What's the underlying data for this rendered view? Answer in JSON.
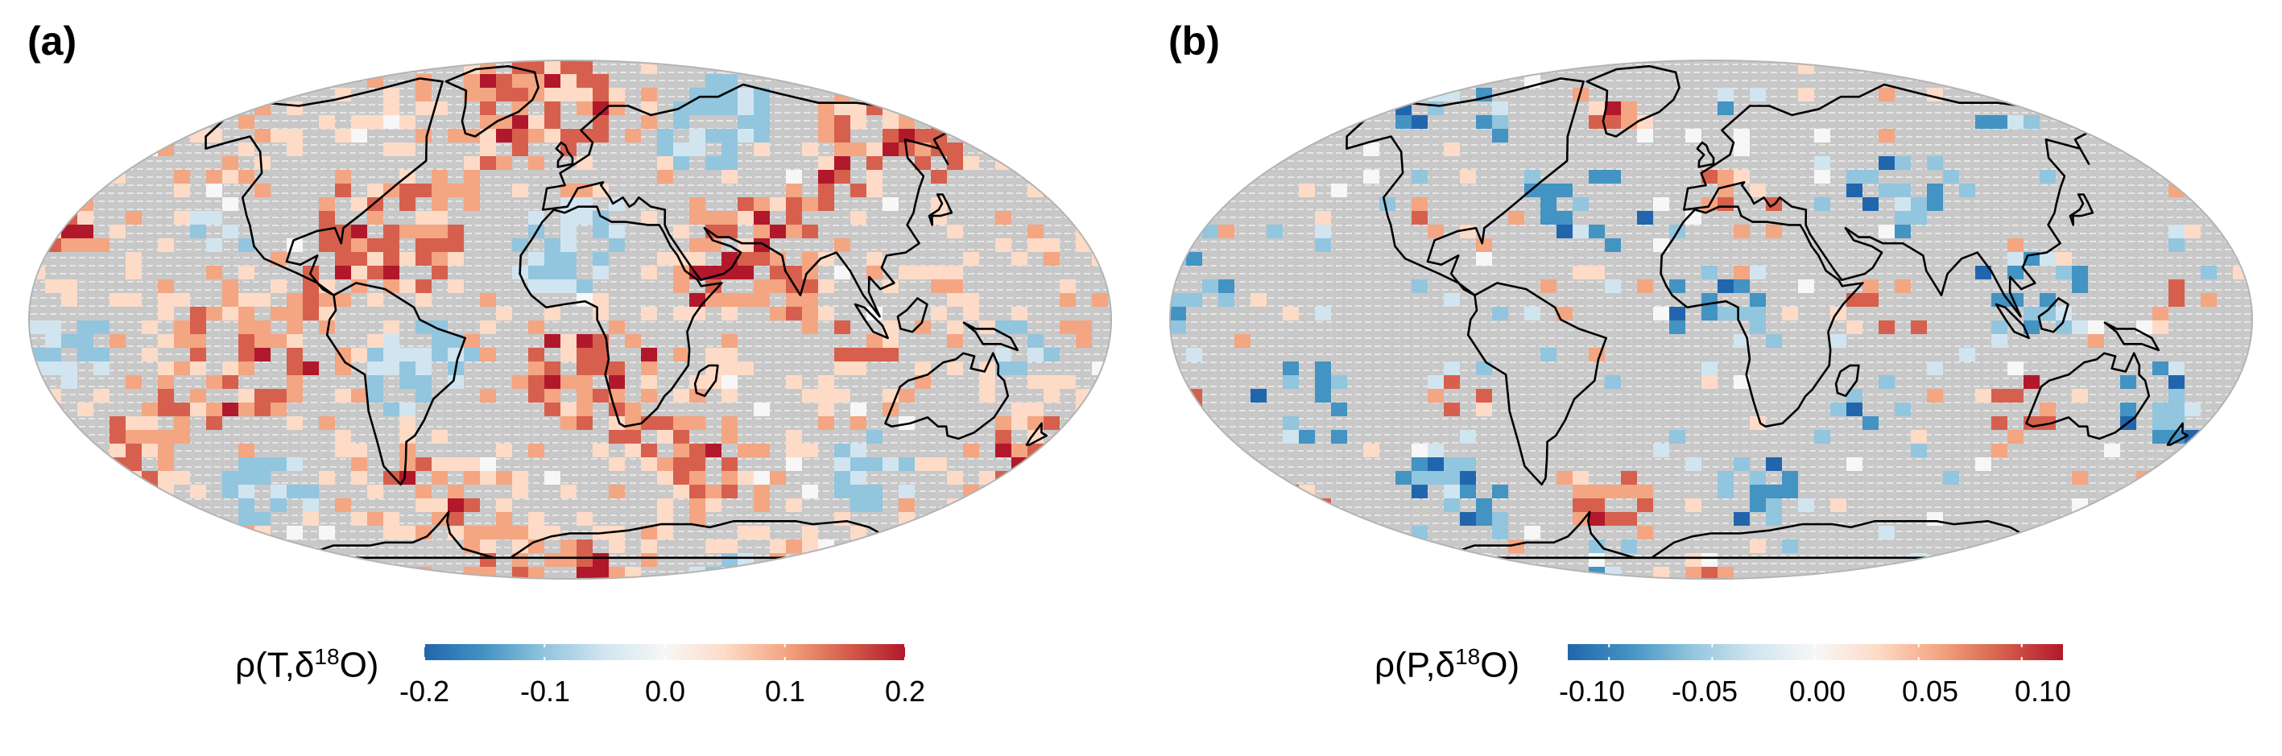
{
  "panels": [
    {
      "label": "(a)",
      "colorbar": {
        "title_prefix": "ρ(T,δ",
        "title_sup": "18",
        "title_suffix": "O)",
        "min": -0.2,
        "max": 0.2,
        "ticks": [
          -0.2,
          -0.1,
          0.0,
          0.1,
          0.2
        ],
        "tick_labels": [
          "-0.2",
          "-0.1",
          "0.0",
          "0.1",
          "0.2"
        ]
      },
      "palette": [
        "#2166ac",
        "#4393c3",
        "#92c5de",
        "#d1e5f0",
        "#f7f7f7",
        "#fddbc7",
        "#f4a582",
        "#d6604d",
        "#b2182b"
      ]
    },
    {
      "label": "(b)",
      "colorbar": {
        "title_prefix": "ρ(P,δ",
        "title_sup": "18",
        "title_suffix": "O)",
        "min": -0.12,
        "max": 0.12,
        "ticks": [
          -0.1,
          -0.05,
          0.0,
          0.05,
          0.1
        ],
        "tick_labels": [
          "-0.10",
          "-0.05",
          "0.00",
          "0.05",
          "0.10"
        ]
      },
      "palette": [
        "#2166ac",
        "#4393c3",
        "#92c5de",
        "#d1e5f0",
        "#f7f7f7",
        "#fddbc7",
        "#f4a582",
        "#d6604d",
        "#b2182b"
      ]
    }
  ],
  "colors": {
    "ocean_grid": "#c8c8c8",
    "grid_dot": "#e6e6e6",
    "coastline": "#000000"
  }
}
